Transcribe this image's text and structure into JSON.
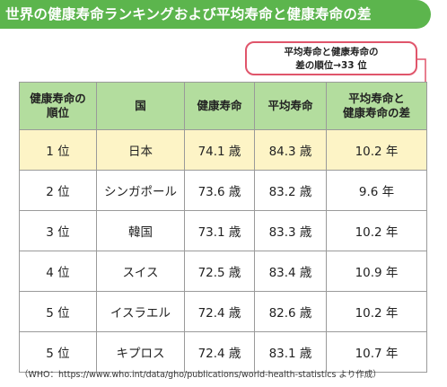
{
  "title": "世界の健康寿命ランキングおよび平均寿命と健康寿命の差",
  "callout": {
    "line1": "平均寿命と健康寿命の",
    "line2": "差の順位→33 位"
  },
  "table": {
    "headers": [
      [
        "健康寿命の",
        "順位"
      ],
      [
        "国"
      ],
      [
        "健康寿命"
      ],
      [
        "平均寿命"
      ],
      [
        "平均寿命と",
        "健康寿命の差"
      ]
    ],
    "rows": [
      {
        "rank": "1 位",
        "country": "日本",
        "healthy": "74.1 歳",
        "average": "84.3 歳",
        "diff": "10.2 年"
      },
      {
        "rank": "2 位",
        "country": "シンガポール",
        "healthy": "73.6 歳",
        "average": "83.2 歳",
        "diff": "9.6 年"
      },
      {
        "rank": "3 位",
        "country": "韓国",
        "healthy": "73.1 歳",
        "average": "83.3 歳",
        "diff": "10.2 年"
      },
      {
        "rank": "4 位",
        "country": "スイス",
        "healthy": "72.5 歳",
        "average": "83.4 歳",
        "diff": "10.9 年"
      },
      {
        "rank": "5 位",
        "country": "イスラエル",
        "healthy": "72.4 歳",
        "average": "82.6 歳",
        "diff": "10.2 年"
      },
      {
        "rank": "5 位",
        "country": "キプロス",
        "healthy": "72.4 歳",
        "average": "83.1 歳",
        "diff": "10.7 年"
      }
    ]
  },
  "footnote": "（WHO：https://www.who.int/data/gho/publications/world-health-statistics より作成）",
  "colors": {
    "title_bg": "#5cb54d",
    "header_bg": "#b3dd9e",
    "highlight_bg": "#fdf4c6",
    "callout_border": "#e0556b"
  }
}
